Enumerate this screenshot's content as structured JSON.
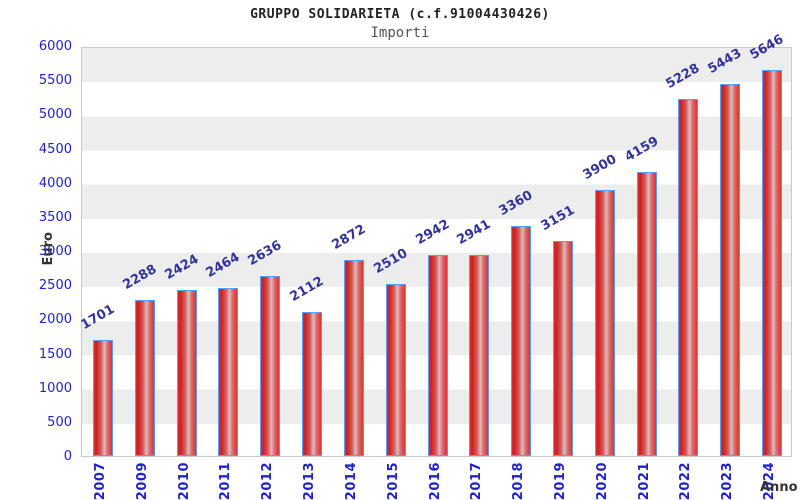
{
  "header": {
    "title": "GRUPPO SOLIDARIETA (c.f.91004430426)",
    "subtitle": "Importi"
  },
  "chart_data": {
    "type": "bar",
    "title": "GRUPPO SOLIDARIETA (c.f.91004430426)",
    "subtitle": "Importi",
    "xlabel": "Anno",
    "ylabel": "Euro",
    "categories": [
      "2007",
      "2009",
      "2010",
      "2011",
      "2012",
      "2013",
      "2014",
      "2015",
      "2016",
      "2017",
      "2018",
      "2019",
      "2020",
      "2021",
      "2022",
      "2023",
      "2024"
    ],
    "values": [
      1701,
      2288,
      2424,
      2464,
      2636,
      2112,
      2872,
      2510,
      2942,
      2941,
      3360,
      3151,
      3900,
      4159,
      5228,
      5443,
      5646
    ],
    "ylim": [
      0,
      6000
    ],
    "ytick_step": 500,
    "grid": "alternating horizontal bands every 500",
    "legend": "none",
    "value_labels": "rotated -30deg above each bar",
    "colors": {
      "bar_fill_edge": "#e02b2b",
      "bar_fill_highlight": "#debaba",
      "bar_border": "#55a0f0",
      "tick_label": "#2222cc",
      "value_label": "#333399",
      "band_gray": "#ededed",
      "band_white": "#ffffff",
      "plot_border": "#c9c9c9",
      "title_color": "#222222",
      "subtitle_color": "#555555",
      "axis_title_color": "#333333"
    }
  }
}
